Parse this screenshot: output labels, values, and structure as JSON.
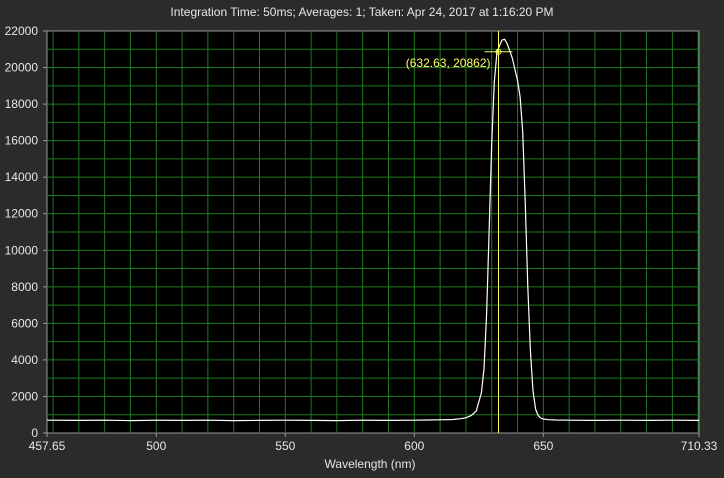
{
  "header": {
    "title": "Integration Time: 50ms;  Averages: 1;  Taken: Apr 24, 2017 at 1:16:20 PM"
  },
  "colors": {
    "background": "#2b2b2b",
    "plot_background": "#000000",
    "grid": "#1f7a1f",
    "trace": "#ffffff",
    "cursor": "#ffff66",
    "text": "#e6e6e6"
  },
  "cursor": {
    "label": "(632.63, 20862)",
    "x": 632.63,
    "y": 20862
  },
  "chart_data": {
    "type": "line",
    "title": "Integration Time: 50ms;  Averages: 1;  Taken: Apr 24, 2017 at 1:16:20 PM",
    "xlabel": "Wavelength (nm)",
    "ylabel": "",
    "xlim": [
      457.65,
      710.33
    ],
    "ylim": [
      0,
      22000
    ],
    "x_tick_labels": [
      "457.65",
      "500",
      "550",
      "600",
      "650",
      "710.33"
    ],
    "x_tick_values": [
      457.65,
      500,
      550,
      600,
      650,
      710.33
    ],
    "y_tick_labels": [
      "0",
      "2000",
      "4000",
      "6000",
      "8000",
      "10000",
      "12000",
      "14000",
      "16000",
      "18000",
      "20000",
      "22000"
    ],
    "y_tick_values": [
      0,
      2000,
      4000,
      6000,
      8000,
      10000,
      12000,
      14000,
      16000,
      18000,
      20000,
      22000
    ],
    "grid": true,
    "legend": "none",
    "series": [
      {
        "x": [
          457.65,
          470,
          480,
          490,
          500,
          510,
          520,
          530,
          540,
          550,
          560,
          570,
          580,
          590,
          600,
          605,
          610,
          615,
          618,
          620,
          622,
          624,
          626,
          627,
          628,
          629,
          630,
          631,
          632,
          633,
          634,
          635,
          636,
          637,
          638,
          639,
          640,
          641,
          642,
          643,
          644,
          645,
          646,
          647,
          648,
          649,
          650,
          652,
          655,
          660,
          670,
          680,
          690,
          700,
          710.33
        ],
        "y": [
          700,
          690,
          700,
          680,
          700,
          690,
          700,
          680,
          690,
          700,
          690,
          680,
          700,
          690,
          700,
          710,
          720,
          740,
          780,
          830,
          950,
          1200,
          2200,
          3500,
          6500,
          11000,
          15800,
          19200,
          20800,
          21200,
          21500,
          21550,
          21300,
          20900,
          20500,
          19900,
          19300,
          18400,
          16500,
          12500,
          8000,
          4500,
          2300,
          1300,
          950,
          820,
          760,
          730,
          710,
          700,
          690,
          700,
          690,
          700,
          690
        ]
      }
    ]
  }
}
